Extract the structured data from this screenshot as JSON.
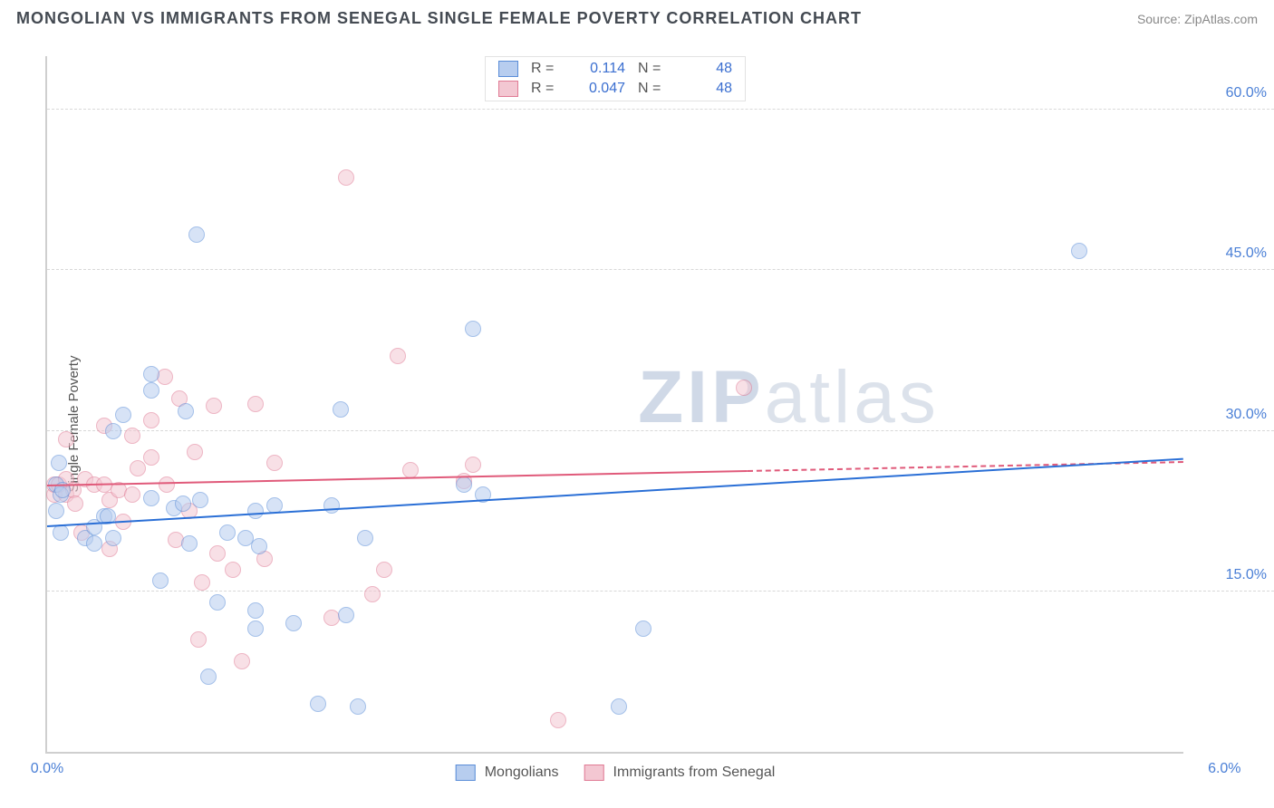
{
  "header": {
    "title": "MONGOLIAN VS IMMIGRANTS FROM SENEGAL SINGLE FEMALE POVERTY CORRELATION CHART",
    "source": "Source: ZipAtlas.com"
  },
  "ylabel": "Single Female Poverty",
  "watermark_a": "ZIP",
  "watermark_b": "atlas",
  "chart": {
    "type": "scatter",
    "xlim": [
      0,
      6
    ],
    "ylim": [
      0,
      65
    ],
    "xticks": [
      {
        "v": 0,
        "label": "0.0%"
      },
      {
        "v": 6,
        "label": "6.0%"
      }
    ],
    "yticks": [
      {
        "v": 15,
        "label": "15.0%"
      },
      {
        "v": 30,
        "label": "30.0%"
      },
      {
        "v": 45,
        "label": "45.0%"
      },
      {
        "v": 60,
        "label": "60.0%"
      }
    ],
    "background_color": "#ffffff",
    "grid_color": "#d8d8d8",
    "axis_color": "#cfcfcf",
    "tick_color": "#4a7fd6",
    "marker_radius": 9,
    "marker_opacity": 0.55
  },
  "series": {
    "mongolians": {
      "label": "Mongolians",
      "fill": "#b7cdef",
      "stroke": "#5a8dd8",
      "line_color": "#2a6fd6",
      "R": "0.114",
      "N": "48",
      "trend": {
        "x1": 0,
        "y1": 21.2,
        "x2": 6,
        "y2": 27.5,
        "dash_from_x": 6
      },
      "points": [
        [
          0.05,
          22.5
        ],
        [
          0.05,
          25.0
        ],
        [
          0.07,
          24.0
        ],
        [
          0.07,
          20.5
        ],
        [
          0.08,
          24.5
        ],
        [
          0.06,
          27.0
        ],
        [
          0.2,
          20.0
        ],
        [
          0.25,
          21.0
        ],
        [
          0.25,
          19.5
        ],
        [
          0.3,
          22.0
        ],
        [
          0.32,
          22.0
        ],
        [
          0.35,
          20.0
        ],
        [
          0.35,
          30.0
        ],
        [
          0.4,
          31.5
        ],
        [
          0.55,
          35.3
        ],
        [
          0.55,
          33.8
        ],
        [
          0.55,
          23.7
        ],
        [
          0.6,
          16.0
        ],
        [
          0.67,
          22.8
        ],
        [
          0.72,
          23.2
        ],
        [
          0.73,
          31.8
        ],
        [
          0.75,
          19.5
        ],
        [
          0.79,
          48.3
        ],
        [
          0.81,
          23.5
        ],
        [
          0.85,
          7.0
        ],
        [
          0.9,
          14.0
        ],
        [
          0.95,
          20.5
        ],
        [
          1.05,
          20.0
        ],
        [
          1.1,
          22.5
        ],
        [
          1.1,
          13.2
        ],
        [
          1.1,
          11.5
        ],
        [
          1.12,
          19.2
        ],
        [
          1.2,
          23.0
        ],
        [
          1.3,
          12.0
        ],
        [
          1.43,
          4.5
        ],
        [
          1.5,
          23.0
        ],
        [
          1.55,
          32.0
        ],
        [
          1.58,
          12.8
        ],
        [
          1.64,
          4.2
        ],
        [
          1.68,
          20.0
        ],
        [
          2.2,
          25.0
        ],
        [
          2.25,
          39.5
        ],
        [
          2.3,
          24.0
        ],
        [
          3.02,
          4.2
        ],
        [
          3.15,
          11.5
        ],
        [
          5.45,
          46.8
        ]
      ]
    },
    "senegal": {
      "label": "Immigrants from Senegal",
      "fill": "#f3c7d2",
      "stroke": "#e07a94",
      "line_color": "#e05a7a",
      "R": "0.047",
      "N": "48",
      "trend": {
        "x1": 0,
        "y1": 25.0,
        "x2": 6,
        "y2": 27.2,
        "dash_from_x": 3.7
      },
      "points": [
        [
          0.04,
          24.0
        ],
        [
          0.04,
          25.0
        ],
        [
          0.06,
          25.0
        ],
        [
          0.1,
          25.5
        ],
        [
          0.1,
          24.0
        ],
        [
          0.1,
          29.2
        ],
        [
          0.14,
          24.5
        ],
        [
          0.15,
          23.2
        ],
        [
          0.18,
          20.5
        ],
        [
          0.2,
          25.5
        ],
        [
          0.25,
          25.0
        ],
        [
          0.3,
          25.0
        ],
        [
          0.3,
          30.5
        ],
        [
          0.33,
          23.5
        ],
        [
          0.33,
          19.0
        ],
        [
          0.38,
          24.5
        ],
        [
          0.4,
          21.5
        ],
        [
          0.45,
          24.0
        ],
        [
          0.45,
          29.5
        ],
        [
          0.48,
          26.5
        ],
        [
          0.55,
          31.0
        ],
        [
          0.55,
          27.5
        ],
        [
          0.62,
          35.0
        ],
        [
          0.63,
          25.0
        ],
        [
          0.68,
          19.8
        ],
        [
          0.7,
          33.0
        ],
        [
          0.75,
          22.5
        ],
        [
          0.78,
          28.0
        ],
        [
          0.8,
          10.5
        ],
        [
          0.82,
          15.8
        ],
        [
          0.88,
          32.3
        ],
        [
          0.9,
          18.5
        ],
        [
          0.98,
          17.0
        ],
        [
          1.03,
          8.5
        ],
        [
          1.1,
          32.5
        ],
        [
          1.15,
          18.0
        ],
        [
          1.2,
          27.0
        ],
        [
          1.5,
          12.5
        ],
        [
          1.58,
          53.7
        ],
        [
          1.72,
          14.7
        ],
        [
          1.78,
          17.0
        ],
        [
          1.85,
          37.0
        ],
        [
          1.92,
          26.3
        ],
        [
          2.2,
          25.3
        ],
        [
          2.25,
          26.8
        ],
        [
          2.7,
          3.0
        ],
        [
          3.68,
          34.0
        ]
      ]
    }
  },
  "legend_top": {
    "r_label": "R  =",
    "n_label": "N  ="
  }
}
